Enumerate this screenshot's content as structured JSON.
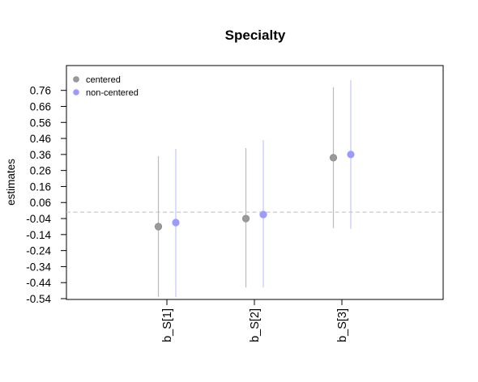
{
  "chart_data": {
    "type": "scatter",
    "title": "Specialty",
    "xlabel": "",
    "ylabel": "estimates",
    "categories": [
      "b_S[1]",
      "b_S[2]",
      "b_S[3]"
    ],
    "y_ticks": [
      0.76,
      0.66,
      0.56,
      0.46,
      0.36,
      0.26,
      0.16,
      0.06,
      -0.04,
      -0.14,
      -0.24,
      -0.34,
      -0.44,
      -0.54
    ],
    "y_tick_labels": [
      "0.76",
      "0.66",
      "0.56",
      "0.46",
      "0.36",
      "0.26",
      "0.16",
      "0.06",
      "-0.04",
      "-0.14",
      "-0.24",
      "-0.34",
      "-0.44",
      "-0.54"
    ],
    "ylim": [
      -0.545,
      0.915
    ],
    "reference_line": 0.0,
    "grid": false,
    "legend_position": "top-left",
    "series": [
      {
        "name": "centered",
        "color": "#888888",
        "point_color": "#9a9a9a",
        "values": [
          -0.09,
          -0.04,
          0.34
        ],
        "lower": [
          -0.53,
          -0.47,
          -0.1
        ],
        "upper": [
          0.35,
          0.4,
          0.78
        ]
      },
      {
        "name": "non-centered",
        "color": "#9999ff",
        "point_color": "#9b9bff",
        "values": [
          -0.065,
          -0.015,
          0.36
        ],
        "lower": [
          -0.53,
          -0.47,
          -0.105
        ],
        "upper": [
          0.395,
          0.45,
          0.825
        ]
      }
    ]
  }
}
